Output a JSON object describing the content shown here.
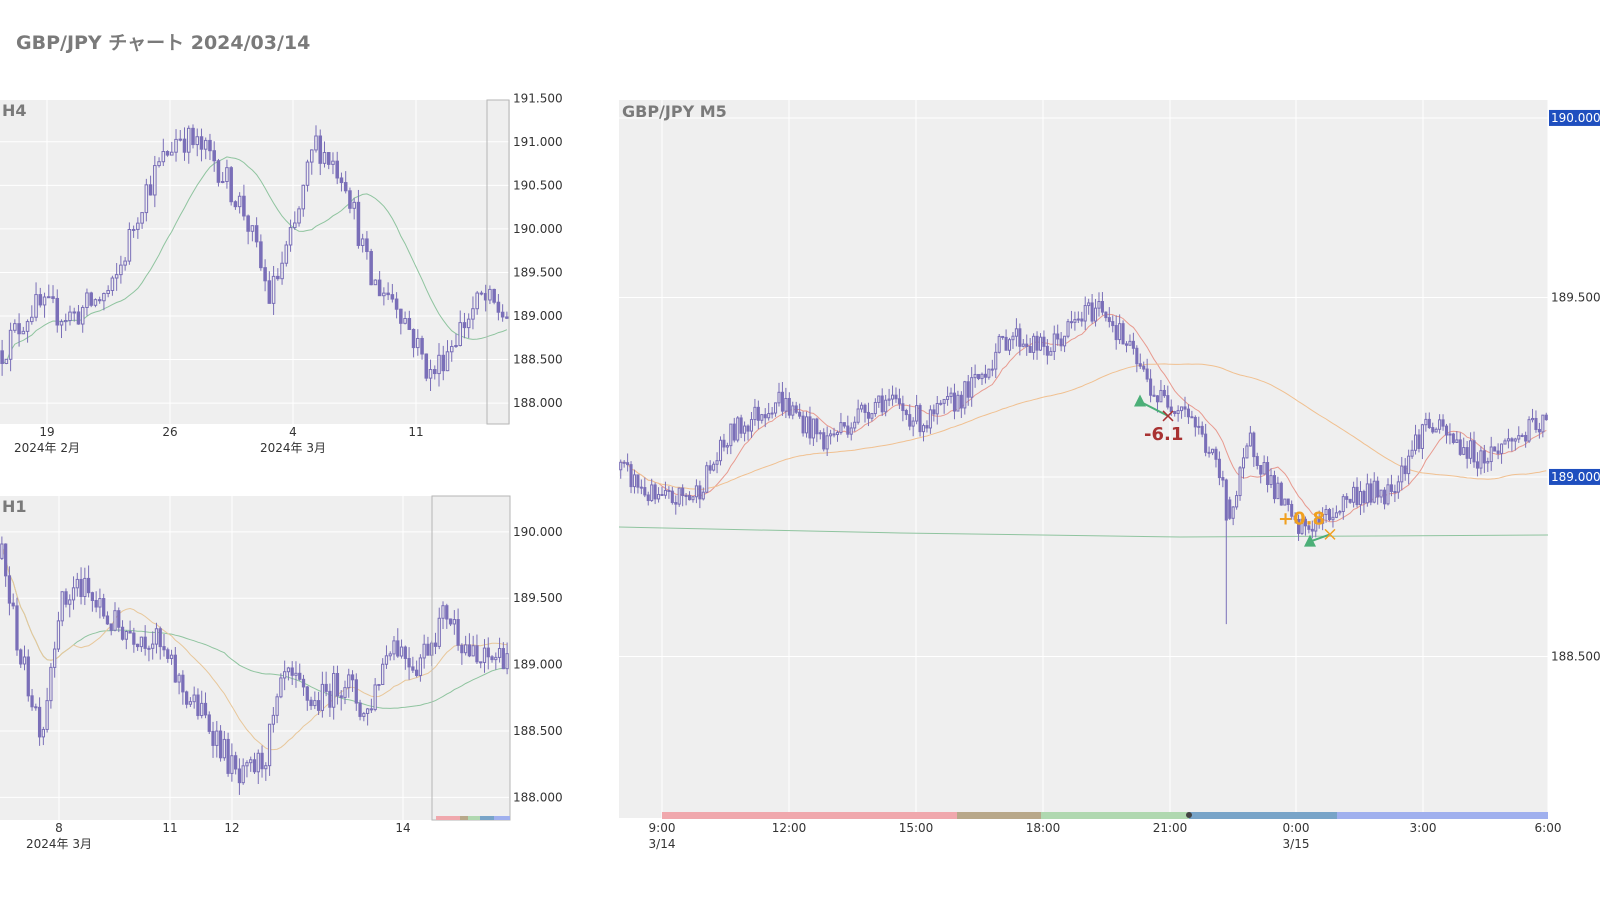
{
  "page_title": "GBP/JPY チャート 2024/03/14",
  "chart_data": [
    {
      "type": "candlestick",
      "label": "H4",
      "up_color": "#7a6fb8",
      "x_ticks": [
        {
          "day": "19",
          "month": "2024年 2月"
        },
        {
          "day": "26",
          "month": ""
        },
        {
          "day": "4",
          "month": "2024年 3月"
        },
        {
          "day": "11",
          "month": ""
        }
      ],
      "y_ticks": [
        "191.500",
        "191.000",
        "190.500",
        "190.000",
        "189.500",
        "189.000",
        "188.500",
        "188.000"
      ],
      "ylim": [
        187.76,
        191.48
      ],
      "ma_color": "#8fc49f"
    },
    {
      "type": "candlestick",
      "label": "H1",
      "x_ticks": [
        {
          "day": "8",
          "month": "2024年 3月"
        },
        {
          "day": "11",
          "month": ""
        },
        {
          "day": "12",
          "month": ""
        },
        {
          "day": "14",
          "month": ""
        }
      ],
      "y_ticks": [
        "190.000",
        "189.500",
        "189.000",
        "188.500",
        "188.000"
      ],
      "ylim": [
        187.83,
        190.27
      ],
      "ma_colors": [
        "#8fc49f",
        "#e8c79a"
      ]
    },
    {
      "type": "candlestick",
      "label": "GBP/JPY M5",
      "x_ticks": [
        {
          "time": "9:00",
          "date": "3/14"
        },
        {
          "time": "12:00",
          "date": ""
        },
        {
          "time": "15:00",
          "date": ""
        },
        {
          "time": "18:00",
          "date": ""
        },
        {
          "time": "21:00",
          "date": ""
        },
        {
          "time": "0:00",
          "date": "3/15"
        },
        {
          "time": "3:00",
          "date": ""
        },
        {
          "time": "6:00",
          "date": ""
        }
      ],
      "y_ticks": [
        "190.000",
        "189.500",
        "189.000",
        "188.500"
      ],
      "ylim": [
        188.05,
        190.05
      ],
      "price_badges": [
        "190.000",
        "189.000"
      ],
      "badge_color": "#1f4fbf",
      "ma_colors": [
        "#e89a8f",
        "#f0c090",
        "#8fc49f"
      ],
      "trades": [
        {
          "result": "-6.1",
          "color": "#a83232",
          "entry": 189.21,
          "exit": 189.17
        },
        {
          "result": "+0.8",
          "color": "#f0a020",
          "entry": 188.82,
          "exit": 188.84
        }
      ],
      "sessions": [
        {
          "color": "#f0a8ad"
        },
        {
          "color": "#b8a88a"
        },
        {
          "color": "#b0d8b0"
        },
        {
          "color": "#78a4c8"
        },
        {
          "color": "#a0b0ee"
        }
      ]
    }
  ]
}
